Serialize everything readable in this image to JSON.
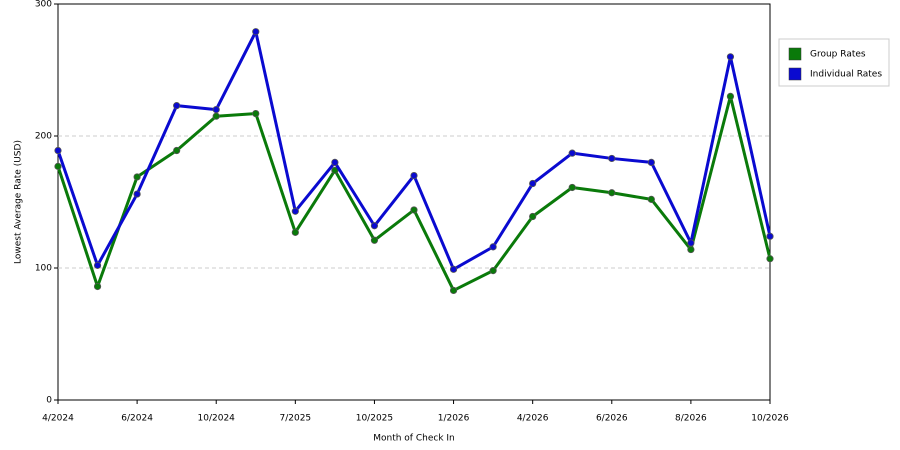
{
  "chart_data": {
    "type": "line",
    "x_label": "Month of Check In",
    "y_label": "Lowest Average Rate (USD)",
    "categories": [
      "4/2024",
      null,
      "6/2024",
      null,
      "10/2024",
      null,
      "7/2025",
      null,
      "10/2025",
      null,
      "1/2026",
      null,
      "4/2026",
      null,
      "6/2026",
      null,
      "8/2026",
      null,
      "10/2026"
    ],
    "series": [
      {
        "name": "Group Rates",
        "color": "#0a7a0a",
        "values": [
          177,
          86,
          169,
          189,
          215,
          217,
          127,
          174,
          121,
          144,
          83,
          98,
          139,
          161,
          157,
          152,
          114,
          230,
          107
        ]
      },
      {
        "name": "Individual Rates",
        "color": "#0a0ad0",
        "values": [
          189,
          102,
          156,
          223,
          220,
          279,
          143,
          180,
          132,
          170,
          99,
          116,
          164,
          187,
          183,
          180,
          119,
          260,
          124
        ]
      }
    ],
    "ylim": [
      0,
      300
    ],
    "yticks": [
      0,
      100,
      200,
      300
    ],
    "grid": true,
    "legend": "right"
  }
}
